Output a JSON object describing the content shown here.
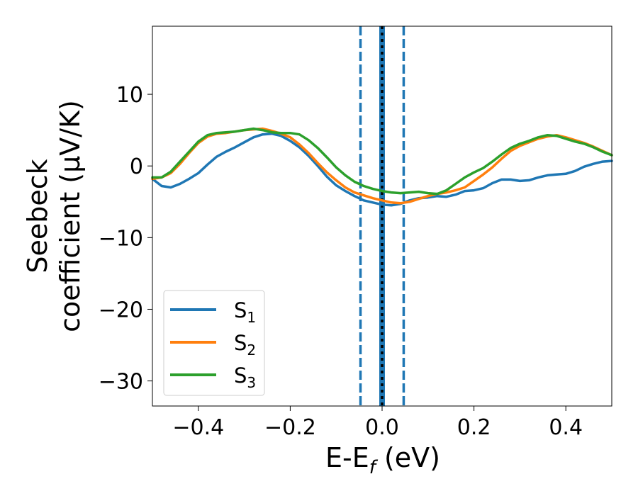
{
  "chart_data": {
    "type": "line",
    "xlabel": "E-E",
    "xlabel_sub": "f",
    "xlabel_unit": " (eV)",
    "ylabel_line1": "Seebeck",
    "ylabel_line2": "coefficient  (μV/K)",
    "xlim": [
      -0.5,
      0.5
    ],
    "ylim": [
      -33.5,
      19.5
    ],
    "xticks": [
      -0.4,
      -0.2,
      0.0,
      0.2,
      0.4
    ],
    "xtick_labels": [
      "−0.4",
      "−0.2",
      "0.0",
      "0.2",
      "0.4"
    ],
    "yticks": [
      -30,
      -20,
      -10,
      0,
      10
    ],
    "ytick_labels": [
      "−30",
      "−20",
      "−10",
      "0",
      "10"
    ],
    "grid": false,
    "legend_position": "lower-left",
    "vlines": [
      {
        "x": -0.047,
        "style": "dashed",
        "color": "#1f77b4"
      },
      {
        "x": 0.0,
        "style": "solid",
        "color": "#1f77b4"
      },
      {
        "x": 0.0,
        "style": "dotted",
        "color": "#000000"
      },
      {
        "x": 0.047,
        "style": "dashed",
        "color": "#1f77b4"
      }
    ],
    "series": [
      {
        "name": "S",
        "sub": "1",
        "color": "#1f77b4",
        "x": [
          -0.5,
          -0.48,
          -0.46,
          -0.44,
          -0.42,
          -0.4,
          -0.38,
          -0.36,
          -0.34,
          -0.32,
          -0.3,
          -0.28,
          -0.26,
          -0.24,
          -0.22,
          -0.2,
          -0.18,
          -0.16,
          -0.14,
          -0.12,
          -0.1,
          -0.08,
          -0.06,
          -0.04,
          -0.02,
          0.0,
          0.02,
          0.04,
          0.06,
          0.08,
          0.1,
          0.12,
          0.14,
          0.16,
          0.18,
          0.2,
          0.22,
          0.24,
          0.26,
          0.28,
          0.3,
          0.32,
          0.34,
          0.36,
          0.38,
          0.4,
          0.42,
          0.44,
          0.46,
          0.48,
          0.5
        ],
        "y": [
          -1.8,
          -2.8,
          -3.0,
          -2.5,
          -1.8,
          -1.0,
          0.2,
          1.3,
          2.0,
          2.6,
          3.3,
          4.0,
          4.4,
          4.5,
          4.2,
          3.5,
          2.6,
          1.4,
          0.0,
          -1.5,
          -2.7,
          -3.5,
          -4.2,
          -4.8,
          -5.1,
          -5.4,
          -5.5,
          -5.3,
          -4.8,
          -4.5,
          -4.4,
          -4.2,
          -4.3,
          -4.0,
          -3.5,
          -3.4,
          -3.1,
          -2.4,
          -1.9,
          -1.9,
          -2.1,
          -2.0,
          -1.6,
          -1.3,
          -1.2,
          -1.1,
          -0.7,
          -0.1,
          0.3,
          0.6,
          0.7
        ]
      },
      {
        "name": "S",
        "sub": "2",
        "color": "#ff7f0e",
        "x": [
          -0.5,
          -0.48,
          -0.46,
          -0.44,
          -0.42,
          -0.4,
          -0.38,
          -0.36,
          -0.34,
          -0.32,
          -0.3,
          -0.28,
          -0.26,
          -0.24,
          -0.22,
          -0.2,
          -0.18,
          -0.16,
          -0.14,
          -0.12,
          -0.1,
          -0.08,
          -0.06,
          -0.04,
          -0.02,
          0.0,
          0.02,
          0.04,
          0.06,
          0.08,
          0.1,
          0.12,
          0.14,
          0.16,
          0.18,
          0.2,
          0.22,
          0.24,
          0.26,
          0.28,
          0.3,
          0.32,
          0.34,
          0.36,
          0.38,
          0.4,
          0.42,
          0.44,
          0.46,
          0.48,
          0.5
        ],
        "y": [
          -1.8,
          -1.6,
          -1.0,
          0.3,
          1.8,
          3.2,
          4.1,
          4.5,
          4.6,
          4.8,
          5.0,
          5.1,
          5.2,
          4.9,
          4.5,
          4.0,
          3.0,
          1.8,
          0.4,
          -0.9,
          -2.0,
          -3.0,
          -3.7,
          -4.1,
          -4.5,
          -4.8,
          -5.1,
          -5.2,
          -5.0,
          -4.6,
          -4.2,
          -3.9,
          -3.7,
          -3.4,
          -3.0,
          -2.1,
          -1.2,
          -0.2,
          1.0,
          2.1,
          2.8,
          3.3,
          3.8,
          4.1,
          4.3,
          4.0,
          3.6,
          3.2,
          2.7,
          2.1,
          1.5
        ]
      },
      {
        "name": "S",
        "sub": "3",
        "color": "#2ca02c",
        "x": [
          -0.5,
          -0.48,
          -0.46,
          -0.44,
          -0.42,
          -0.4,
          -0.38,
          -0.36,
          -0.34,
          -0.32,
          -0.3,
          -0.28,
          -0.26,
          -0.24,
          -0.22,
          -0.2,
          -0.18,
          -0.16,
          -0.14,
          -0.12,
          -0.1,
          -0.08,
          -0.06,
          -0.04,
          -0.02,
          0.0,
          0.02,
          0.04,
          0.06,
          0.08,
          0.1,
          0.12,
          0.14,
          0.16,
          0.18,
          0.2,
          0.22,
          0.24,
          0.26,
          0.28,
          0.3,
          0.32,
          0.34,
          0.36,
          0.38,
          0.4,
          0.42,
          0.44,
          0.46,
          0.48,
          0.5
        ],
        "y": [
          -1.6,
          -1.6,
          -0.8,
          0.6,
          2.0,
          3.4,
          4.3,
          4.6,
          4.7,
          4.8,
          5.0,
          5.2,
          5.0,
          4.7,
          4.6,
          4.6,
          4.4,
          3.6,
          2.5,
          1.2,
          -0.2,
          -1.3,
          -2.2,
          -2.8,
          -3.2,
          -3.5,
          -3.7,
          -3.8,
          -3.7,
          -3.6,
          -3.8,
          -3.9,
          -3.4,
          -2.5,
          -1.6,
          -0.9,
          -0.3,
          0.6,
          1.6,
          2.5,
          3.1,
          3.5,
          4.0,
          4.3,
          4.2,
          3.8,
          3.4,
          3.1,
          2.6,
          2.0,
          1.5
        ]
      }
    ]
  }
}
